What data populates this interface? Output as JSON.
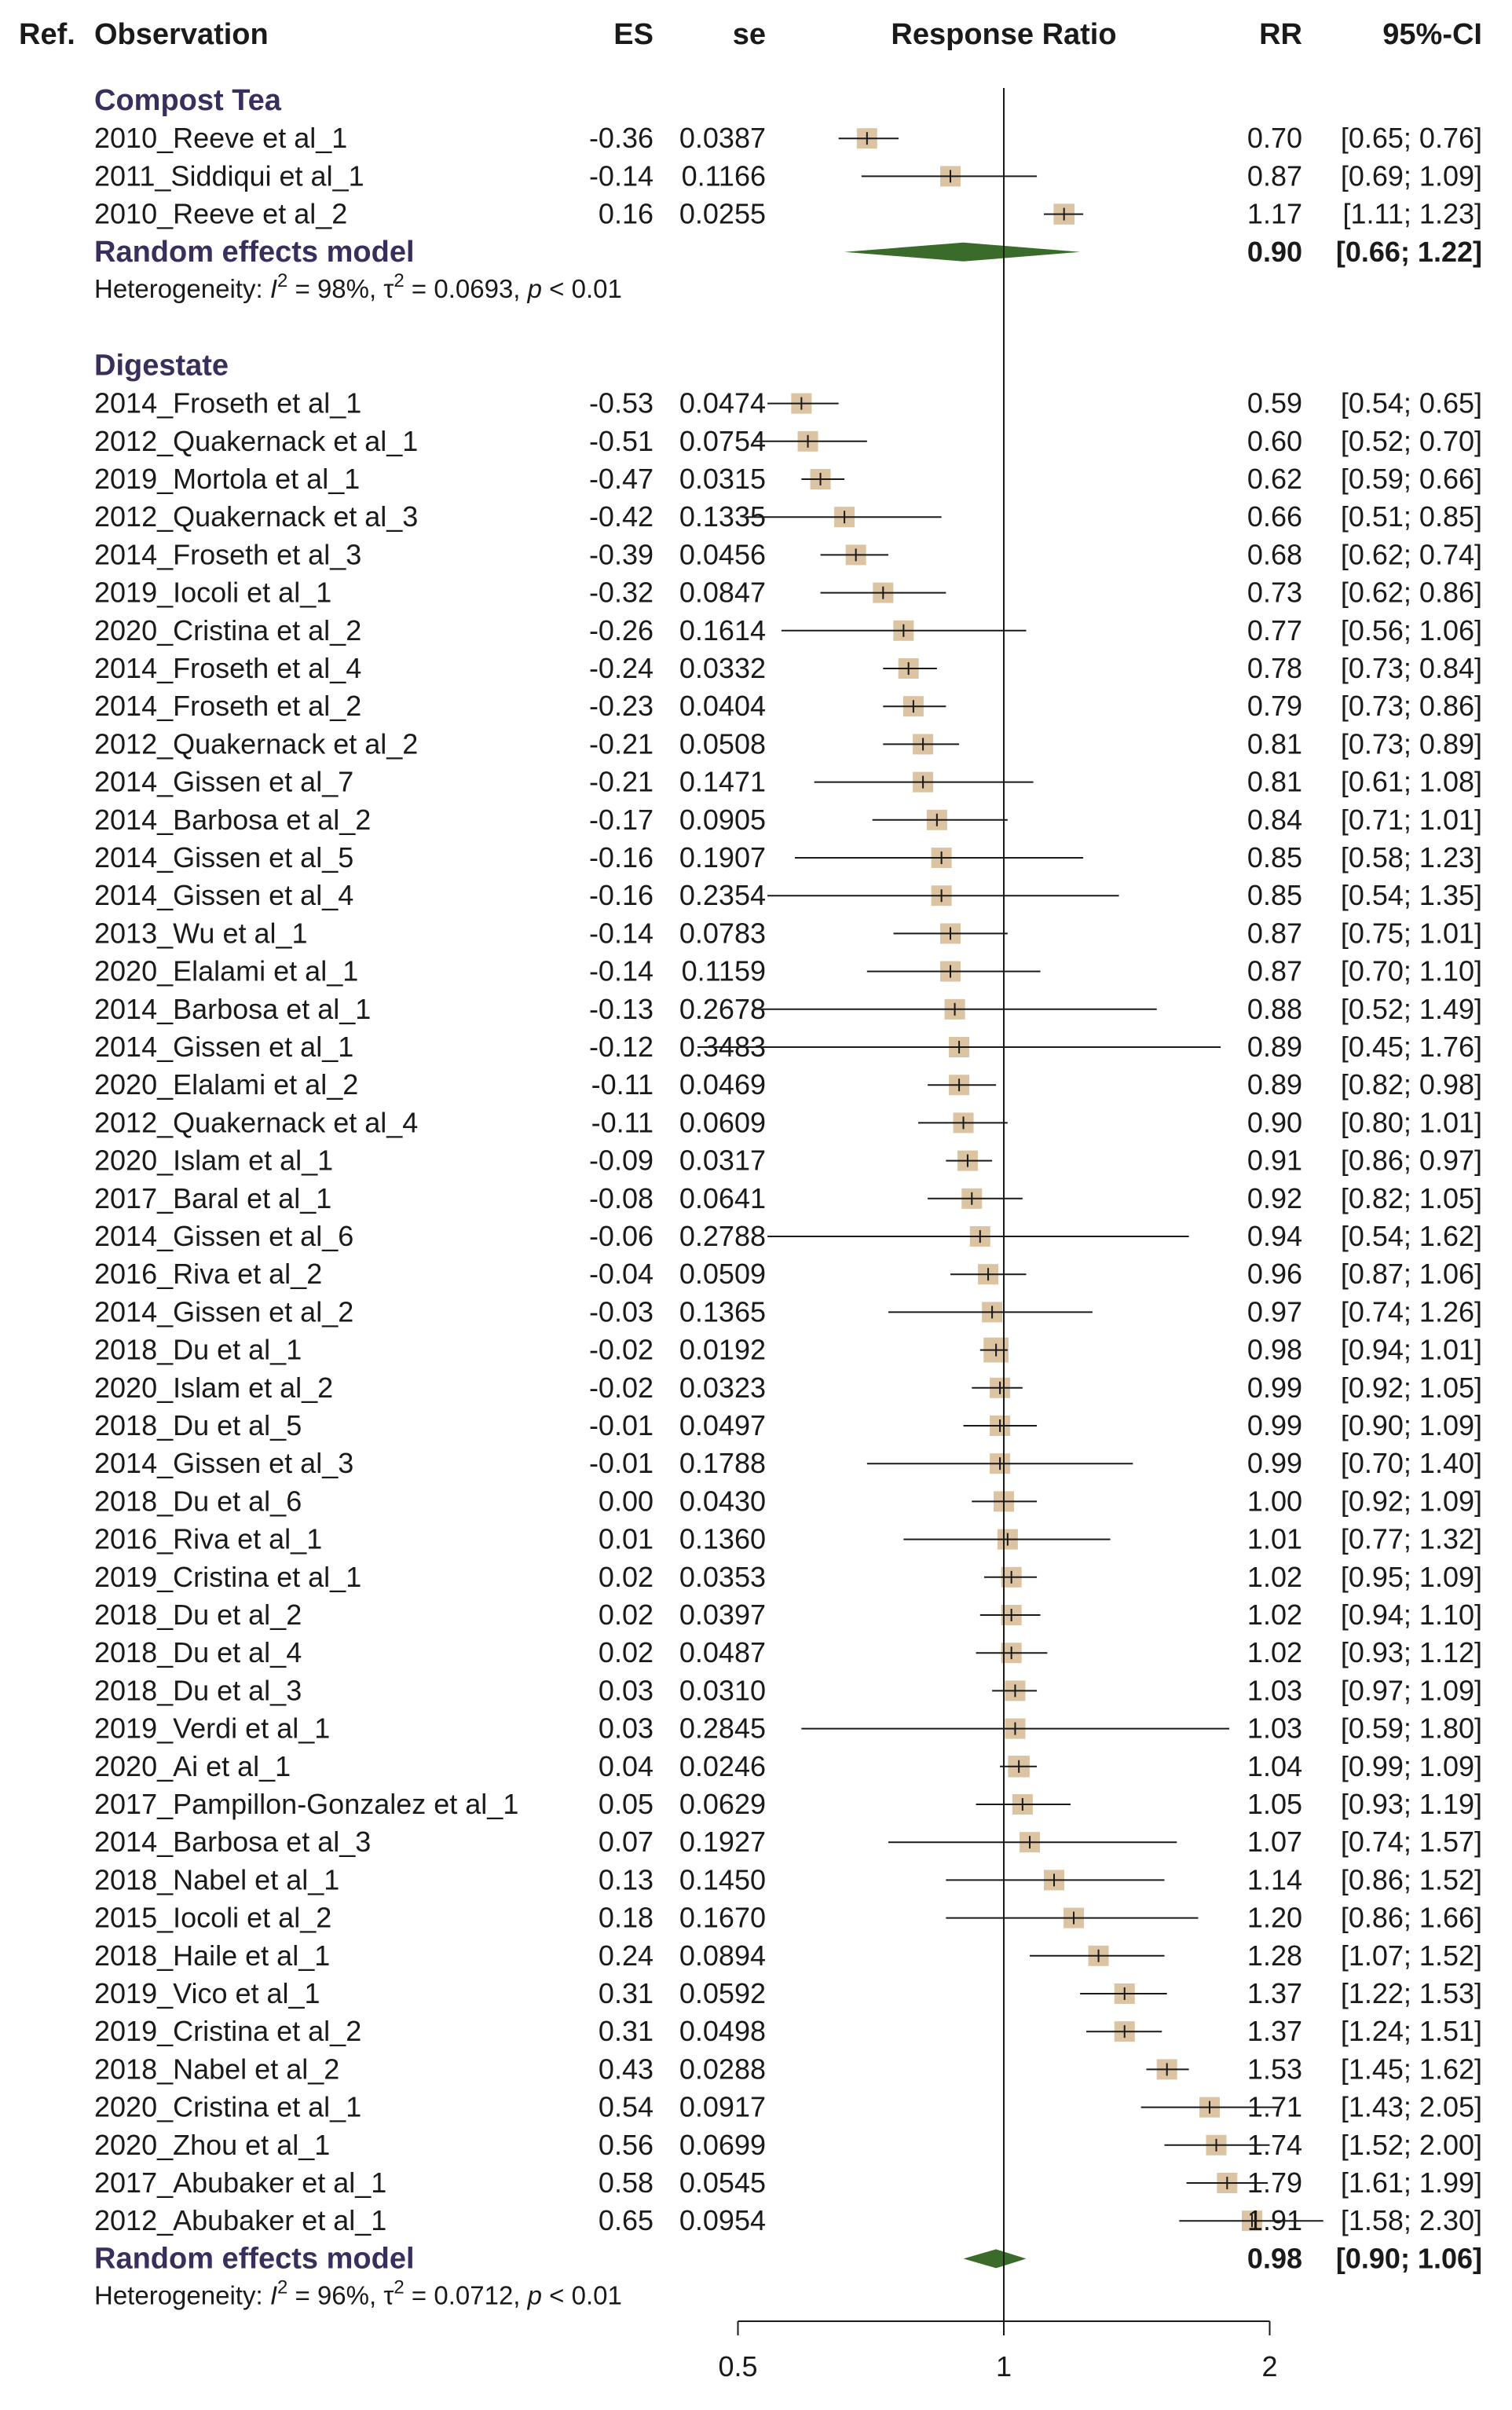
{
  "headers": {
    "ref": "Ref.",
    "observation": "Observation",
    "es": "ES",
    "se": "se",
    "response_ratio": "Response Ratio",
    "rr": "RR",
    "ci": "95%-CI"
  },
  "colors": {
    "box": "#dcc3a2",
    "diamond": "#3a6b2a",
    "line": "#1a1a1a",
    "group_label": "#3a2e5c"
  },
  "chart_data": {
    "type": "forest",
    "x_axis": {
      "scale": "log",
      "ticks": [
        0.5,
        1,
        2
      ],
      "tick_labels": [
        "0.5",
        "1",
        "2"
      ],
      "xlim": [
        0.42,
        2.4
      ],
      "reference_line": 1
    },
    "groups": [
      {
        "name": "Compost Tea",
        "studies": [
          {
            "ref": "2010_Reeve et al_1",
            "es": "-0.36",
            "se": "0.0387",
            "rr": 0.7,
            "lo": 0.65,
            "hi": 0.76,
            "rr_text": "0.70",
            "ci_text": "[0.65; 0.76]"
          },
          {
            "ref": "2011_Siddiqui et al_1",
            "es": "-0.14",
            "se": "0.1166",
            "rr": 0.87,
            "lo": 0.69,
            "hi": 1.09,
            "rr_text": "0.87",
            "ci_text": "[0.69; 1.09]"
          },
          {
            "ref": "2010_Reeve et al_2",
            "es": "0.16",
            "se": "0.0255",
            "rr": 1.17,
            "lo": 1.11,
            "hi": 1.23,
            "rr_text": "1.17",
            "ci_text": "[1.11; 1.23]"
          }
        ],
        "model": {
          "label": "Random effects model",
          "rr": 0.9,
          "lo": 0.66,
          "hi": 1.22,
          "rr_text": "0.90",
          "ci_text": "[0.66; 1.22]"
        },
        "heterogeneity": {
          "prefix": "Heterogeneity: ",
          "i2_sym": "I",
          "sq": "2",
          "i2_val": " = 98%, ",
          "tau_sym": "τ",
          "tau_val": " = 0.0693, ",
          "p_sym": "p",
          "p_val": " < 0.01"
        }
      },
      {
        "name": "Digestate",
        "studies": [
          {
            "ref": "2014_Froseth et al_1",
            "es": "-0.53",
            "se": "0.0474",
            "rr": 0.59,
            "lo": 0.54,
            "hi": 0.65,
            "rr_text": "0.59",
            "ci_text": "[0.54; 0.65]"
          },
          {
            "ref": "2012_Quakernack et al_1",
            "es": "-0.51",
            "se": "0.0754",
            "rr": 0.6,
            "lo": 0.52,
            "hi": 0.7,
            "rr_text": "0.60",
            "ci_text": "[0.52; 0.70]"
          },
          {
            "ref": "2019_Mortola et al_1",
            "es": "-0.47",
            "se": "0.0315",
            "rr": 0.62,
            "lo": 0.59,
            "hi": 0.66,
            "rr_text": "0.62",
            "ci_text": "[0.59; 0.66]"
          },
          {
            "ref": "2012_Quakernack et al_3",
            "es": "-0.42",
            "se": "0.1335",
            "rr": 0.66,
            "lo": 0.51,
            "hi": 0.85,
            "rr_text": "0.66",
            "ci_text": "[0.51; 0.85]"
          },
          {
            "ref": "2014_Froseth et al_3",
            "es": "-0.39",
            "se": "0.0456",
            "rr": 0.68,
            "lo": 0.62,
            "hi": 0.74,
            "rr_text": "0.68",
            "ci_text": "[0.62; 0.74]"
          },
          {
            "ref": "2019_Iocoli et al_1",
            "es": "-0.32",
            "se": "0.0847",
            "rr": 0.73,
            "lo": 0.62,
            "hi": 0.86,
            "rr_text": "0.73",
            "ci_text": "[0.62; 0.86]"
          },
          {
            "ref": "2020_Cristina et al_2",
            "es": "-0.26",
            "se": "0.1614",
            "rr": 0.77,
            "lo": 0.56,
            "hi": 1.06,
            "rr_text": "0.77",
            "ci_text": "[0.56; 1.06]"
          },
          {
            "ref": "2014_Froseth et al_4",
            "es": "-0.24",
            "se": "0.0332",
            "rr": 0.78,
            "lo": 0.73,
            "hi": 0.84,
            "rr_text": "0.78",
            "ci_text": "[0.73; 0.84]"
          },
          {
            "ref": "2014_Froseth et al_2",
            "es": "-0.23",
            "se": "0.0404",
            "rr": 0.79,
            "lo": 0.73,
            "hi": 0.86,
            "rr_text": "0.79",
            "ci_text": "[0.73; 0.86]"
          },
          {
            "ref": "2012_Quakernack et al_2",
            "es": "-0.21",
            "se": "0.0508",
            "rr": 0.81,
            "lo": 0.73,
            "hi": 0.89,
            "rr_text": "0.81",
            "ci_text": "[0.73; 0.89]"
          },
          {
            "ref": "2014_Gissen et al_7",
            "es": "-0.21",
            "se": "0.1471",
            "rr": 0.81,
            "lo": 0.61,
            "hi": 1.08,
            "rr_text": "0.81",
            "ci_text": "[0.61; 1.08]"
          },
          {
            "ref": "2014_Barbosa et al_2",
            "es": "-0.17",
            "se": "0.0905",
            "rr": 0.84,
            "lo": 0.71,
            "hi": 1.01,
            "rr_text": "0.84",
            "ci_text": "[0.71; 1.01]"
          },
          {
            "ref": "2014_Gissen et al_5",
            "es": "-0.16",
            "se": "0.1907",
            "rr": 0.85,
            "lo": 0.58,
            "hi": 1.23,
            "rr_text": "0.85",
            "ci_text": "[0.58; 1.23]"
          },
          {
            "ref": "2014_Gissen et al_4",
            "es": "-0.16",
            "se": "0.2354",
            "rr": 0.85,
            "lo": 0.54,
            "hi": 1.35,
            "rr_text": "0.85",
            "ci_text": "[0.54; 1.35]"
          },
          {
            "ref": "2013_Wu et al_1",
            "es": "-0.14",
            "se": "0.0783",
            "rr": 0.87,
            "lo": 0.75,
            "hi": 1.01,
            "rr_text": "0.87",
            "ci_text": "[0.75; 1.01]"
          },
          {
            "ref": "2020_Elalami et al_1",
            "es": "-0.14",
            "se": "0.1159",
            "rr": 0.87,
            "lo": 0.7,
            "hi": 1.1,
            "rr_text": "0.87",
            "ci_text": "[0.70; 1.10]"
          },
          {
            "ref": "2014_Barbosa et al_1",
            "es": "-0.13",
            "se": "0.2678",
            "rr": 0.88,
            "lo": 0.52,
            "hi": 1.49,
            "rr_text": "0.88",
            "ci_text": "[0.52; 1.49]"
          },
          {
            "ref": "2014_Gissen et al_1",
            "es": "-0.12",
            "se": "0.3483",
            "rr": 0.89,
            "lo": 0.45,
            "hi": 1.76,
            "rr_text": "0.89",
            "ci_text": "[0.45; 1.76]"
          },
          {
            "ref": "2020_Elalami et al_2",
            "es": "-0.11",
            "se": "0.0469",
            "rr": 0.89,
            "lo": 0.82,
            "hi": 0.98,
            "rr_text": "0.89",
            "ci_text": "[0.82; 0.98]"
          },
          {
            "ref": "2012_Quakernack et al_4",
            "es": "-0.11",
            "se": "0.0609",
            "rr": 0.9,
            "lo": 0.8,
            "hi": 1.01,
            "rr_text": "0.90",
            "ci_text": "[0.80; 1.01]"
          },
          {
            "ref": "2020_Islam et al_1",
            "es": "-0.09",
            "se": "0.0317",
            "rr": 0.91,
            "lo": 0.86,
            "hi": 0.97,
            "rr_text": "0.91",
            "ci_text": "[0.86; 0.97]"
          },
          {
            "ref": "2017_Baral et al_1",
            "es": "-0.08",
            "se": "0.0641",
            "rr": 0.92,
            "lo": 0.82,
            "hi": 1.05,
            "rr_text": "0.92",
            "ci_text": "[0.82; 1.05]"
          },
          {
            "ref": "2014_Gissen et al_6",
            "es": "-0.06",
            "se": "0.2788",
            "rr": 0.94,
            "lo": 0.54,
            "hi": 1.62,
            "rr_text": "0.94",
            "ci_text": "[0.54; 1.62]"
          },
          {
            "ref": "2016_Riva et al_2",
            "es": "-0.04",
            "se": "0.0509",
            "rr": 0.96,
            "lo": 0.87,
            "hi": 1.06,
            "rr_text": "0.96",
            "ci_text": "[0.87; 1.06]"
          },
          {
            "ref": "2014_Gissen et al_2",
            "es": "-0.03",
            "se": "0.1365",
            "rr": 0.97,
            "lo": 0.74,
            "hi": 1.26,
            "rr_text": "0.97",
            "ci_text": "[0.74; 1.26]"
          },
          {
            "ref": "2018_Du et al_1",
            "es": "-0.02",
            "se": "0.0192",
            "rr": 0.98,
            "lo": 0.94,
            "hi": 1.01,
            "rr_text": "0.98",
            "ci_text": "[0.94; 1.01]"
          },
          {
            "ref": "2020_Islam et al_2",
            "es": "-0.02",
            "se": "0.0323",
            "rr": 0.99,
            "lo": 0.92,
            "hi": 1.05,
            "rr_text": "0.99",
            "ci_text": "[0.92; 1.05]"
          },
          {
            "ref": "2018_Du et al_5",
            "es": "-0.01",
            "se": "0.0497",
            "rr": 0.99,
            "lo": 0.9,
            "hi": 1.09,
            "rr_text": "0.99",
            "ci_text": "[0.90; 1.09]"
          },
          {
            "ref": "2014_Gissen et al_3",
            "es": "-0.01",
            "se": "0.1788",
            "rr": 0.99,
            "lo": 0.7,
            "hi": 1.4,
            "rr_text": "0.99",
            "ci_text": "[0.70; 1.40]"
          },
          {
            "ref": "2018_Du et al_6",
            "es": "0.00",
            "se": "0.0430",
            "rr": 1.0,
            "lo": 0.92,
            "hi": 1.09,
            "rr_text": "1.00",
            "ci_text": "[0.92; 1.09]"
          },
          {
            "ref": "2016_Riva et al_1",
            "es": "0.01",
            "se": "0.1360",
            "rr": 1.01,
            "lo": 0.77,
            "hi": 1.32,
            "rr_text": "1.01",
            "ci_text": "[0.77; 1.32]"
          },
          {
            "ref": "2019_Cristina et al_1",
            "es": "0.02",
            "se": "0.0353",
            "rr": 1.02,
            "lo": 0.95,
            "hi": 1.09,
            "rr_text": "1.02",
            "ci_text": "[0.95; 1.09]"
          },
          {
            "ref": "2018_Du et al_2",
            "es": "0.02",
            "se": "0.0397",
            "rr": 1.02,
            "lo": 0.94,
            "hi": 1.1,
            "rr_text": "1.02",
            "ci_text": "[0.94; 1.10]"
          },
          {
            "ref": "2018_Du et al_4",
            "es": "0.02",
            "se": "0.0487",
            "rr": 1.02,
            "lo": 0.93,
            "hi": 1.12,
            "rr_text": "1.02",
            "ci_text": "[0.93; 1.12]"
          },
          {
            "ref": "2018_Du et al_3",
            "es": "0.03",
            "se": "0.0310",
            "rr": 1.03,
            "lo": 0.97,
            "hi": 1.09,
            "rr_text": "1.03",
            "ci_text": "[0.97; 1.09]"
          },
          {
            "ref": "2019_Verdi et al_1",
            "es": "0.03",
            "se": "0.2845",
            "rr": 1.03,
            "lo": 0.59,
            "hi": 1.8,
            "rr_text": "1.03",
            "ci_text": "[0.59; 1.80]"
          },
          {
            "ref": "2020_Ai et al_1",
            "es": "0.04",
            "se": "0.0246",
            "rr": 1.04,
            "lo": 0.99,
            "hi": 1.09,
            "rr_text": "1.04",
            "ci_text": "[0.99; 1.09]"
          },
          {
            "ref": "2017_Pampillon-Gonzalez et al_1",
            "es": "0.05",
            "se": "0.0629",
            "rr": 1.05,
            "lo": 0.93,
            "hi": 1.19,
            "rr_text": "1.05",
            "ci_text": "[0.93; 1.19]"
          },
          {
            "ref": "2014_Barbosa et al_3",
            "es": "0.07",
            "se": "0.1927",
            "rr": 1.07,
            "lo": 0.74,
            "hi": 1.57,
            "rr_text": "1.07",
            "ci_text": "[0.74; 1.57]"
          },
          {
            "ref": "2018_Nabel et al_1",
            "es": "0.13",
            "se": "0.1450",
            "rr": 1.14,
            "lo": 0.86,
            "hi": 1.52,
            "rr_text": "1.14",
            "ci_text": "[0.86; 1.52]"
          },
          {
            "ref": "2015_Iocoli et al_2",
            "es": "0.18",
            "se": "0.1670",
            "rr": 1.2,
            "lo": 0.86,
            "hi": 1.66,
            "rr_text": "1.20",
            "ci_text": "[0.86; 1.66]"
          },
          {
            "ref": "2018_Haile et al_1",
            "es": "0.24",
            "se": "0.0894",
            "rr": 1.28,
            "lo": 1.07,
            "hi": 1.52,
            "rr_text": "1.28",
            "ci_text": "[1.07; 1.52]"
          },
          {
            "ref": "2019_Vico et al_1",
            "es": "0.31",
            "se": "0.0592",
            "rr": 1.37,
            "lo": 1.22,
            "hi": 1.53,
            "rr_text": "1.37",
            "ci_text": "[1.22; 1.53]"
          },
          {
            "ref": "2019_Cristina et al_2",
            "es": "0.31",
            "se": "0.0498",
            "rr": 1.37,
            "lo": 1.24,
            "hi": 1.51,
            "rr_text": "1.37",
            "ci_text": "[1.24; 1.51]"
          },
          {
            "ref": "2018_Nabel et al_2",
            "es": "0.43",
            "se": "0.0288",
            "rr": 1.53,
            "lo": 1.45,
            "hi": 1.62,
            "rr_text": "1.53",
            "ci_text": "[1.45; 1.62]"
          },
          {
            "ref": "2020_Cristina et al_1",
            "es": "0.54",
            "se": "0.0917",
            "rr": 1.71,
            "lo": 1.43,
            "hi": 2.05,
            "rr_text": "1.71",
            "ci_text": "[1.43; 2.05]"
          },
          {
            "ref": "2020_Zhou et al_1",
            "es": "0.56",
            "se": "0.0699",
            "rr": 1.74,
            "lo": 1.52,
            "hi": 2.0,
            "rr_text": "1.74",
            "ci_text": "[1.52; 2.00]"
          },
          {
            "ref": "2017_Abubaker et al_1",
            "es": "0.58",
            "se": "0.0545",
            "rr": 1.79,
            "lo": 1.61,
            "hi": 1.99,
            "rr_text": "1.79",
            "ci_text": "[1.61; 1.99]"
          },
          {
            "ref": "2012_Abubaker et al_1",
            "es": "0.65",
            "se": "0.0954",
            "rr": 1.91,
            "lo": 1.58,
            "hi": 2.3,
            "rr_text": "1.91",
            "ci_text": "[1.58; 2.30]"
          }
        ],
        "model": {
          "label": "Random effects model",
          "rr": 0.98,
          "lo": 0.9,
          "hi": 1.06,
          "rr_text": "0.98",
          "ci_text": "[0.90; 1.06]"
        },
        "heterogeneity": {
          "prefix": "Heterogeneity: ",
          "i2_sym": "I",
          "sq": "2",
          "i2_val": " = 96%, ",
          "tau_sym": "τ",
          "tau_val": " = 0.0712, ",
          "p_sym": "p",
          "p_val": " < 0.01"
        }
      }
    ]
  }
}
